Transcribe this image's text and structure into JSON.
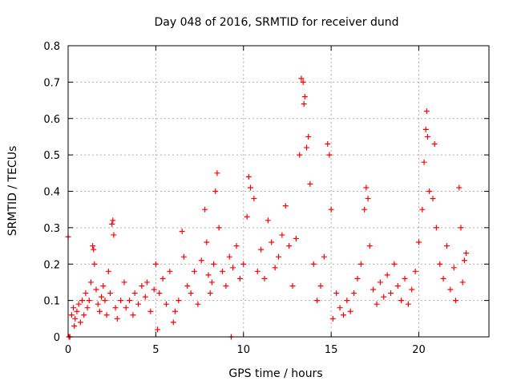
{
  "chart_data": {
    "type": "scatter",
    "title": "Day 048 of 2016, SRMTID for receiver dund",
    "xlabel": "GPS time / hours",
    "ylabel": "SRMTID / TECUs",
    "xlim": [
      0,
      24
    ],
    "ylim": [
      0,
      0.8
    ],
    "xticks": [
      0,
      5,
      10,
      15,
      20
    ],
    "xtick_labels": [
      "0",
      "5",
      "10",
      "15",
      "20"
    ],
    "yticks": [
      0,
      0.1,
      0.2,
      0.3,
      0.4,
      0.5,
      0.6,
      0.7,
      0.8
    ],
    "ytick_labels": [
      "0",
      "0.1",
      "0.2",
      "0.3",
      "0.4",
      "0.5",
      "0.6",
      "0.7",
      "0.8"
    ],
    "grid": true,
    "marker": "+",
    "color": "#ff0000",
    "series": [
      {
        "name": "SRMTID",
        "points": [
          [
            0.0,
            0.275
          ],
          [
            0.05,
            0.0
          ],
          [
            0.1,
            0.0
          ],
          [
            0.2,
            0.06
          ],
          [
            0.3,
            0.08
          ],
          [
            0.35,
            0.03
          ],
          [
            0.4,
            0.05
          ],
          [
            0.5,
            0.07
          ],
          [
            0.6,
            0.09
          ],
          [
            0.7,
            0.04
          ],
          [
            0.8,
            0.1
          ],
          [
            0.9,
            0.06
          ],
          [
            1.0,
            0.12
          ],
          [
            1.1,
            0.08
          ],
          [
            1.2,
            0.1
          ],
          [
            1.3,
            0.15
          ],
          [
            1.4,
            0.25
          ],
          [
            1.45,
            0.24
          ],
          [
            1.5,
            0.2
          ],
          [
            1.6,
            0.13
          ],
          [
            1.7,
            0.09
          ],
          [
            1.8,
            0.07
          ],
          [
            1.9,
            0.11
          ],
          [
            2.0,
            0.14
          ],
          [
            2.1,
            0.1
          ],
          [
            2.2,
            0.06
          ],
          [
            2.3,
            0.18
          ],
          [
            2.4,
            0.12
          ],
          [
            2.5,
            0.31
          ],
          [
            2.55,
            0.32
          ],
          [
            2.6,
            0.28
          ],
          [
            2.7,
            0.08
          ],
          [
            2.8,
            0.05
          ],
          [
            3.0,
            0.1
          ],
          [
            3.2,
            0.15
          ],
          [
            3.3,
            0.08
          ],
          [
            3.5,
            0.1
          ],
          [
            3.7,
            0.06
          ],
          [
            3.8,
            0.12
          ],
          [
            4.0,
            0.09
          ],
          [
            4.2,
            0.14
          ],
          [
            4.4,
            0.11
          ],
          [
            4.5,
            0.15
          ],
          [
            4.7,
            0.07
          ],
          [
            4.9,
            0.13
          ],
          [
            5.0,
            0.2
          ],
          [
            5.1,
            0.02
          ],
          [
            5.2,
            0.12
          ],
          [
            5.4,
            0.16
          ],
          [
            5.6,
            0.09
          ],
          [
            5.8,
            0.18
          ],
          [
            6.0,
            0.04
          ],
          [
            6.1,
            0.07
          ],
          [
            6.3,
            0.1
          ],
          [
            6.5,
            0.29
          ],
          [
            6.6,
            0.22
          ],
          [
            6.8,
            0.14
          ],
          [
            7.0,
            0.12
          ],
          [
            7.2,
            0.18
          ],
          [
            7.4,
            0.09
          ],
          [
            7.6,
            0.21
          ],
          [
            7.8,
            0.35
          ],
          [
            7.9,
            0.26
          ],
          [
            8.0,
            0.17
          ],
          [
            8.1,
            0.12
          ],
          [
            8.2,
            0.15
          ],
          [
            8.3,
            0.2
          ],
          [
            8.4,
            0.4
          ],
          [
            8.5,
            0.45
          ],
          [
            8.6,
            0.3
          ],
          [
            8.8,
            0.18
          ],
          [
            9.0,
            0.14
          ],
          [
            9.2,
            0.22
          ],
          [
            9.3,
            0.0
          ],
          [
            9.4,
            0.19
          ],
          [
            9.6,
            0.25
          ],
          [
            9.8,
            0.16
          ],
          [
            10.0,
            0.2
          ],
          [
            10.2,
            0.33
          ],
          [
            10.3,
            0.44
          ],
          [
            10.4,
            0.41
          ],
          [
            10.6,
            0.38
          ],
          [
            10.8,
            0.18
          ],
          [
            11.0,
            0.24
          ],
          [
            11.2,
            0.16
          ],
          [
            11.4,
            0.32
          ],
          [
            11.6,
            0.26
          ],
          [
            11.8,
            0.19
          ],
          [
            12.0,
            0.22
          ],
          [
            12.2,
            0.28
          ],
          [
            12.4,
            0.36
          ],
          [
            12.6,
            0.25
          ],
          [
            12.8,
            0.14
          ],
          [
            13.0,
            0.27
          ],
          [
            13.2,
            0.5
          ],
          [
            13.3,
            0.71
          ],
          [
            13.4,
            0.7
          ],
          [
            13.45,
            0.64
          ],
          [
            13.5,
            0.66
          ],
          [
            13.6,
            0.52
          ],
          [
            13.7,
            0.55
          ],
          [
            13.8,
            0.42
          ],
          [
            14.0,
            0.2
          ],
          [
            14.2,
            0.1
          ],
          [
            14.4,
            0.14
          ],
          [
            14.6,
            0.22
          ],
          [
            14.8,
            0.53
          ],
          [
            14.9,
            0.5
          ],
          [
            15.0,
            0.35
          ],
          [
            15.1,
            0.05
          ],
          [
            15.3,
            0.12
          ],
          [
            15.5,
            0.08
          ],
          [
            15.7,
            0.06
          ],
          [
            15.9,
            0.1
          ],
          [
            16.1,
            0.07
          ],
          [
            16.3,
            0.12
          ],
          [
            16.5,
            0.16
          ],
          [
            16.7,
            0.2
          ],
          [
            16.9,
            0.35
          ],
          [
            17.0,
            0.41
          ],
          [
            17.1,
            0.38
          ],
          [
            17.2,
            0.25
          ],
          [
            17.4,
            0.13
          ],
          [
            17.6,
            0.09
          ],
          [
            17.8,
            0.15
          ],
          [
            18.0,
            0.11
          ],
          [
            18.2,
            0.17
          ],
          [
            18.4,
            0.12
          ],
          [
            18.6,
            0.2
          ],
          [
            18.8,
            0.14
          ],
          [
            19.0,
            0.1
          ],
          [
            19.2,
            0.16
          ],
          [
            19.4,
            0.09
          ],
          [
            19.6,
            0.13
          ],
          [
            19.8,
            0.18
          ],
          [
            20.0,
            0.26
          ],
          [
            20.2,
            0.35
          ],
          [
            20.3,
            0.48
          ],
          [
            20.4,
            0.57
          ],
          [
            20.45,
            0.62
          ],
          [
            20.5,
            0.55
          ],
          [
            20.6,
            0.4
          ],
          [
            20.8,
            0.38
          ],
          [
            20.9,
            0.53
          ],
          [
            21.0,
            0.3
          ],
          [
            21.2,
            0.2
          ],
          [
            21.4,
            0.16
          ],
          [
            21.6,
            0.25
          ],
          [
            21.8,
            0.13
          ],
          [
            22.0,
            0.19
          ],
          [
            22.1,
            0.1
          ],
          [
            22.3,
            0.41
          ],
          [
            22.4,
            0.3
          ],
          [
            22.5,
            0.15
          ],
          [
            22.6,
            0.21
          ],
          [
            22.7,
            0.23
          ]
        ]
      }
    ]
  }
}
